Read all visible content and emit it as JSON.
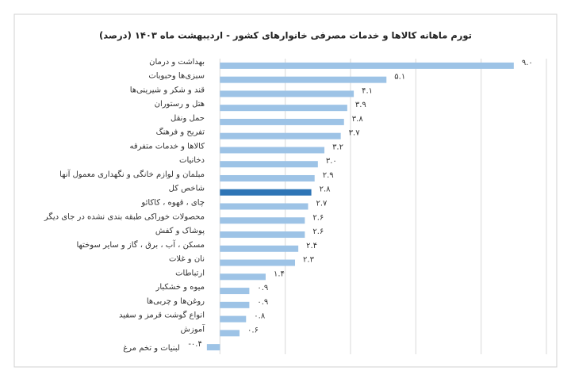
{
  "chart_data": {
    "type": "hbar",
    "title": "تورم ماهانه کالاها و خدمات مصرفی خانوارهای کشور - اردیبهشت ماه ۱۴۰۳ (درصد)",
    "categories": [
      "بهداشت و درمان",
      "سبزی‌ها وحبوبات",
      "قند و شکر و شیرینی‌ها",
      "هتل و رستوران",
      "حمل ونقل",
      "تفریح و فرهنگ",
      "کالاها و خدمات متفرقه",
      "دخانیات",
      "مبلمان و لوازم خانگی و نگهداری معمول آنها",
      "شاخص کل",
      "چای ، قهوه ، کاکائو",
      "محصولات خوراکی طبقه بندی نشده در جای دیگر",
      "پوشاک و کفش",
      "مسکن ، آب ، برق ، گاز و سایر سوختها",
      "نان و غلات",
      "ارتباطات",
      "میوه و خشکبار",
      "روغن‌ها و چربی‌ها",
      "انواع گوشت قرمز و سفید",
      "آموزش",
      "لبنیات و تخم مرغ"
    ],
    "values": [
      9.0,
      5.1,
      4.1,
      3.9,
      3.8,
      3.7,
      3.2,
      3.0,
      2.9,
      2.8,
      2.7,
      2.6,
      2.6,
      2.4,
      2.3,
      1.4,
      0.9,
      0.9,
      0.8,
      0.6,
      -0.4
    ],
    "value_labels": [
      "۹.۰",
      "۵.۱",
      "۴.۱",
      "۳.۹",
      "۳.۸",
      "۳.۷",
      "۳.۲",
      "۳.۰",
      "۲.۹",
      "۲.۸",
      "۲.۷",
      "۲.۶",
      "۲.۶",
      "۲.۴",
      "۲.۳",
      "۱.۴",
      "۰.۹",
      "۰.۹",
      "۰.۸",
      "۰.۶",
      "-۰.۴"
    ],
    "colors": [
      "#9dc3e6",
      "#9dc3e6",
      "#9dc3e6",
      "#9dc3e6",
      "#9dc3e6",
      "#9dc3e6",
      "#9dc3e6",
      "#9dc3e6",
      "#9dc3e6",
      "#2e75b6",
      "#9dc3e6",
      "#9dc3e6",
      "#9dc3e6",
      "#9dc3e6",
      "#9dc3e6",
      "#9dc3e6",
      "#9dc3e6",
      "#9dc3e6",
      "#9dc3e6",
      "#9dc3e6",
      "#9dc3e6"
    ],
    "xlim": [
      -2,
      10
    ],
    "xticks": [
      0,
      2,
      4,
      6,
      8,
      10
    ],
    "grid": true
  }
}
